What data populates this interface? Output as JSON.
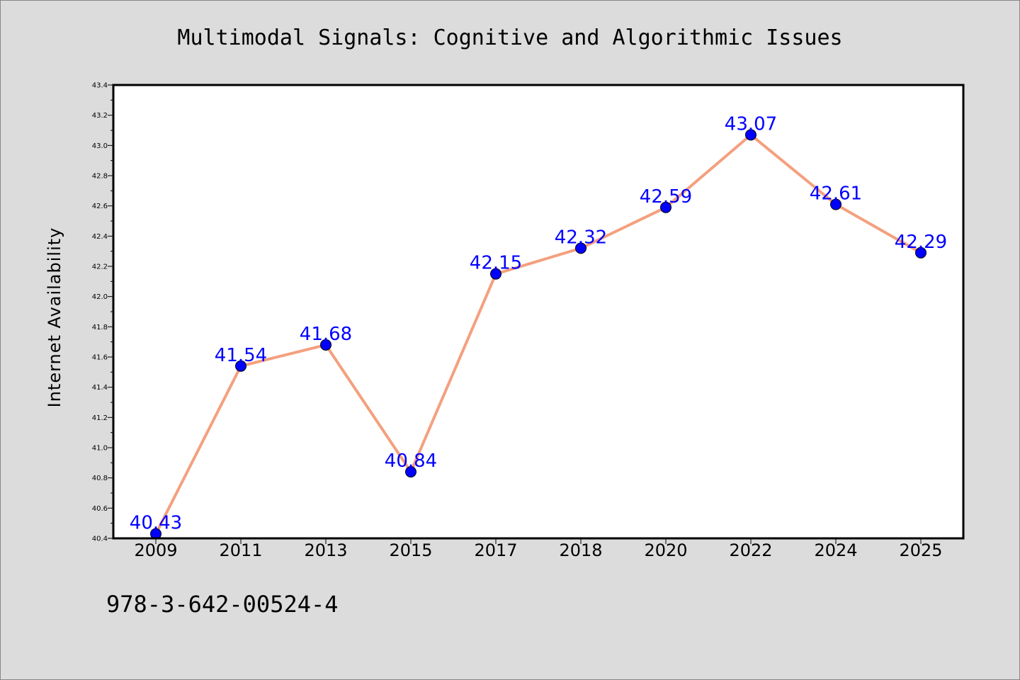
{
  "isbn": "978-3-642-00524-4",
  "colors": {
    "background": "#dcdcdc",
    "plot_background": "#ffffff",
    "line": "#f4a07e",
    "marker": "#0000ff",
    "data_label": "#0000ff"
  },
  "chart_data": {
    "type": "line",
    "title": "Multimodal Signals: Cognitive and Algorithmic Issues",
    "xlabel": "",
    "ylabel": "Internet Availability",
    "categories": [
      "2009",
      "2011",
      "2013",
      "2015",
      "2017",
      "2018",
      "2020",
      "2022",
      "2024",
      "2025"
    ],
    "series": [
      {
        "values": [
          40.43,
          41.54,
          41.68,
          40.84,
          42.15,
          42.32,
          42.59,
          43.07,
          42.61,
          42.29
        ],
        "data_labels": [
          "40.43",
          "41.54",
          "41.68",
          "40.84",
          "42.15",
          "42.32",
          "42.59",
          "43.07",
          "42.61",
          "42.29"
        ]
      }
    ],
    "ylim": [
      40.4,
      43.4
    ],
    "yticks": [
      "40.4",
      "40.6",
      "40.8",
      "41.0",
      "41.2",
      "41.4",
      "41.6",
      "41.8",
      "42.0",
      "42.2",
      "42.4",
      "42.6",
      "42.8",
      "43.0",
      "43.2",
      "43.4"
    ],
    "grid": false,
    "legend": "none",
    "marker": "circle"
  }
}
